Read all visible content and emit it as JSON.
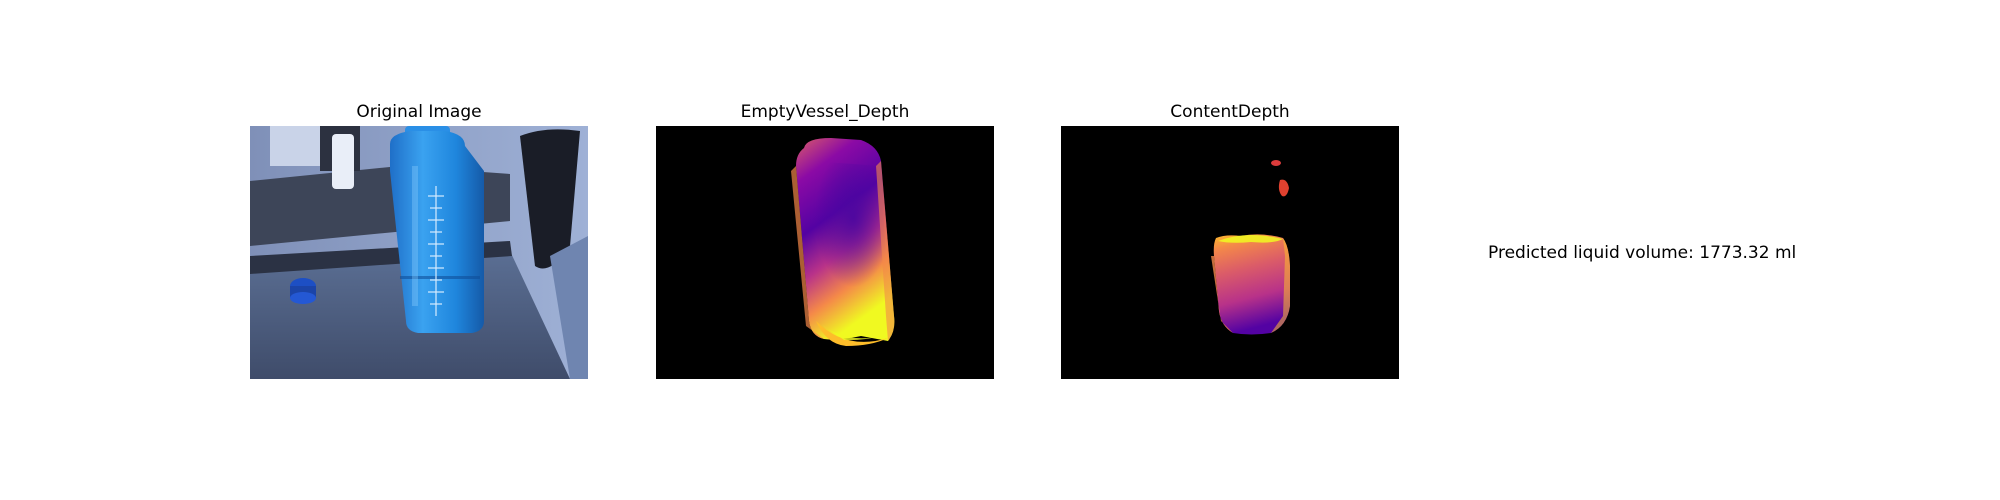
{
  "panels": [
    {
      "title": "Original Image"
    },
    {
      "title": "EmptyVessel_Depth"
    },
    {
      "title": "ContentDepth"
    }
  ],
  "result": {
    "text": "Predicted liquid volume: 1773.32 ml"
  },
  "colors": {
    "background": "#ffffff",
    "depth_background": "#000000",
    "depth_colormap": [
      "#0d0887",
      "#5302a3",
      "#8b0aa5",
      "#b83289",
      "#db5c68",
      "#f48849",
      "#febd2a",
      "#f0f921"
    ]
  }
}
